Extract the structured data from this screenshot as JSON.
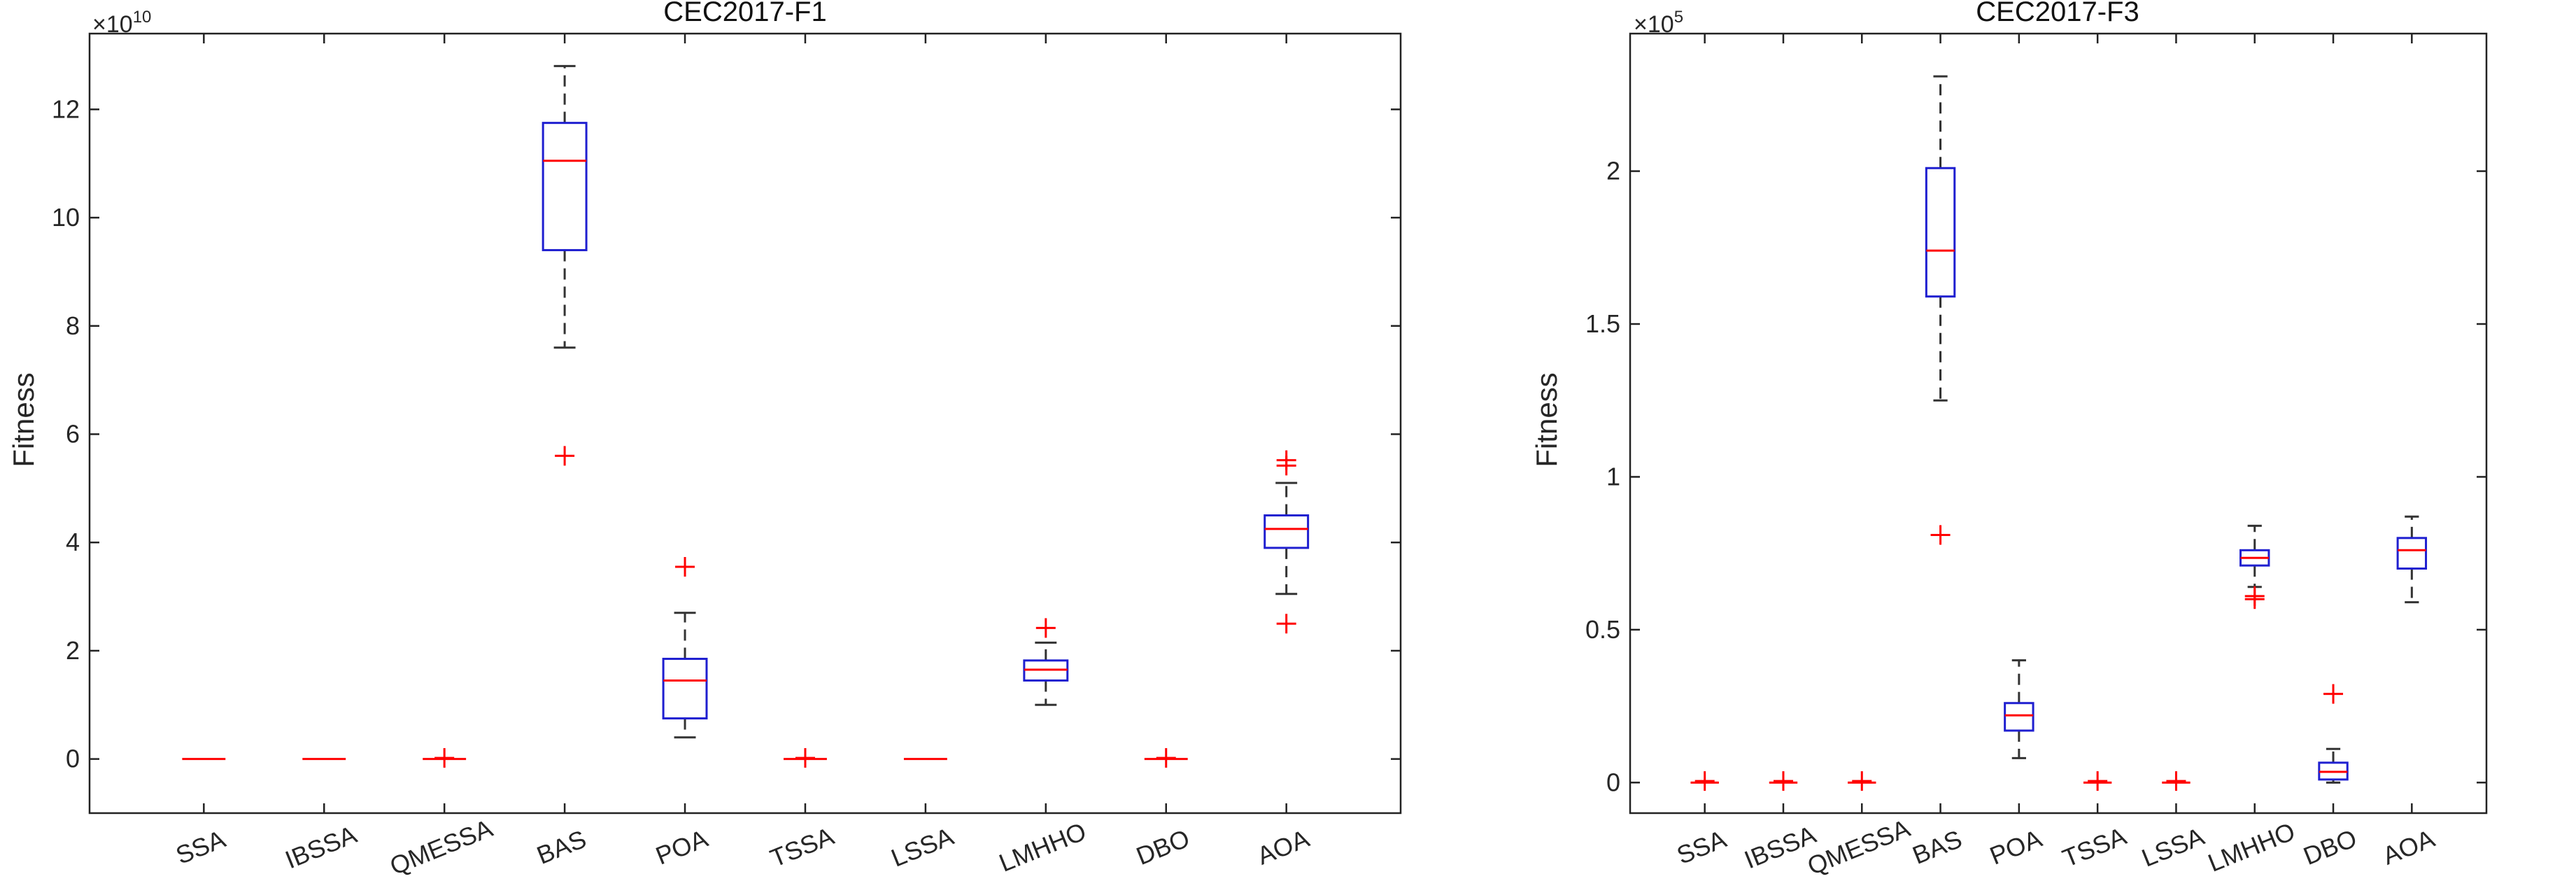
{
  "chart_data": [
    {
      "type": "box",
      "title": "CEC2017-F1",
      "ylabel": "Fitness",
      "multiplier": "×10",
      "multiplier_exp": "10",
      "ylim": [
        -1,
        13.4
      ],
      "yticks": [
        0,
        2,
        4,
        6,
        8,
        10,
        12
      ],
      "ytick_labels": [
        "0",
        "2",
        "4",
        "6",
        "8",
        "10",
        "12"
      ],
      "categories": [
        "SSA",
        "IBSSA",
        "QMESSA",
        "BAS",
        "POA",
        "TSSA",
        "LSSA",
        "LMHHO",
        "DBO",
        "AOA"
      ],
      "boxes": [
        {
          "min": 0,
          "q1": 0,
          "median": 0,
          "q3": 0,
          "max": 0,
          "outliers": []
        },
        {
          "min": 0,
          "q1": 0,
          "median": 0,
          "q3": 0,
          "max": 0,
          "outliers": []
        },
        {
          "min": 0,
          "q1": 0,
          "median": 0,
          "q3": 0,
          "max": 0,
          "outliers": [
            0.02
          ]
        },
        {
          "min": 7.6,
          "q1": 9.4,
          "median": 11.05,
          "q3": 11.75,
          "max": 12.8,
          "outliers": [
            5.6
          ]
        },
        {
          "min": 0.4,
          "q1": 0.75,
          "median": 1.45,
          "q3": 1.85,
          "max": 2.7,
          "outliers": [
            3.55
          ]
        },
        {
          "min": 0,
          "q1": 0,
          "median": 0,
          "q3": 0,
          "max": 0,
          "outliers": [
            0.02
          ]
        },
        {
          "min": 0,
          "q1": 0,
          "median": 0,
          "q3": 0,
          "max": 0,
          "outliers": []
        },
        {
          "min": 1.0,
          "q1": 1.45,
          "median": 1.65,
          "q3": 1.82,
          "max": 2.15,
          "outliers": [
            2.42
          ]
        },
        {
          "min": 0,
          "q1": 0,
          "median": 0,
          "q3": 0,
          "max": 0,
          "outliers": [
            0.02
          ]
        },
        {
          "min": 3.05,
          "q1": 3.9,
          "median": 4.25,
          "q3": 4.5,
          "max": 5.1,
          "outliers": [
            5.42,
            5.52,
            2.5
          ]
        }
      ]
    },
    {
      "type": "box",
      "title": "CEC2017-F3",
      "ylabel": "Fitness",
      "multiplier": "×10",
      "multiplier_exp": "5",
      "ylim": [
        -0.1,
        2.45
      ],
      "yticks": [
        0,
        0.5,
        1,
        1.5,
        2
      ],
      "ytick_labels": [
        "0",
        "0.5",
        "1",
        "1.5",
        "2"
      ],
      "categories": [
        "SSA",
        "IBSSA",
        "QMESSA",
        "BAS",
        "POA",
        "TSSA",
        "LSSA",
        "LMHHO",
        "DBO",
        "AOA"
      ],
      "boxes": [
        {
          "min": 0,
          "q1": 0,
          "median": 0,
          "q3": 0,
          "max": 0,
          "outliers": [
            0.005
          ]
        },
        {
          "min": 0,
          "q1": 0,
          "median": 0,
          "q3": 0,
          "max": 0,
          "outliers": [
            0.005
          ]
        },
        {
          "min": 0,
          "q1": 0,
          "median": 0,
          "q3": 0,
          "max": 0,
          "outliers": [
            0.005
          ]
        },
        {
          "min": 1.25,
          "q1": 1.59,
          "median": 1.74,
          "q3": 2.01,
          "max": 2.31,
          "outliers": [
            0.81
          ]
        },
        {
          "min": 0.08,
          "q1": 0.17,
          "median": 0.22,
          "q3": 0.26,
          "max": 0.4,
          "outliers": []
        },
        {
          "min": 0,
          "q1": 0,
          "median": 0,
          "q3": 0,
          "max": 0,
          "outliers": [
            0.005
          ]
        },
        {
          "min": 0,
          "q1": 0,
          "median": 0,
          "q3": 0,
          "max": 0,
          "outliers": [
            0.005
          ]
        },
        {
          "min": 0.64,
          "q1": 0.71,
          "median": 0.735,
          "q3": 0.76,
          "max": 0.84,
          "outliers": [
            0.6,
            0.61
          ]
        },
        {
          "min": 0.0,
          "q1": 0.01,
          "median": 0.035,
          "q3": 0.065,
          "max": 0.11,
          "outliers": [
            0.29
          ]
        },
        {
          "min": 0.59,
          "q1": 0.7,
          "median": 0.76,
          "q3": 0.8,
          "max": 0.87,
          "outliers": []
        }
      ]
    }
  ]
}
